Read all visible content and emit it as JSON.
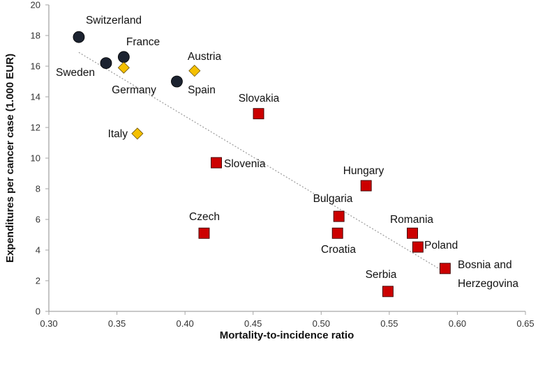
{
  "chart_data": {
    "type": "scatter",
    "title": "",
    "xlabel": "Mortality-to-incidence ratio",
    "ylabel": "Expenditures per cancer case (1.000 EUR)",
    "xlim": [
      0.3,
      0.65
    ],
    "ylim": [
      0,
      20
    ],
    "xticks": [
      "0.30",
      "0.35",
      "0.40",
      "0.45",
      "0.50",
      "0.55",
      "0.60",
      "0.65"
    ],
    "yticks": [
      "0",
      "2",
      "4",
      "6",
      "8",
      "10",
      "12",
      "14",
      "16",
      "18",
      "20"
    ],
    "grid": false,
    "legend": "none",
    "groups": {
      "circle": {
        "color": "#1c2330"
      },
      "diamond": {
        "color": "#f5c000"
      },
      "square": {
        "color": "#cc0000"
      }
    },
    "points": [
      {
        "label": "Switzerland",
        "x": 0.322,
        "y": 17.9,
        "group": "circle"
      },
      {
        "label": "France",
        "x": 0.355,
        "y": 16.6,
        "group": "circle"
      },
      {
        "label": "Sweden",
        "x": 0.342,
        "y": 16.2,
        "group": "circle"
      },
      {
        "label": "Germany",
        "x": 0.355,
        "y": 15.9,
        "group": "diamond"
      },
      {
        "label": "Austria",
        "x": 0.407,
        "y": 15.7,
        "group": "diamond"
      },
      {
        "label": "Spain",
        "x": 0.394,
        "y": 15.0,
        "group": "circle"
      },
      {
        "label": "Slovakia",
        "x": 0.454,
        "y": 12.9,
        "group": "square"
      },
      {
        "label": "Italy",
        "x": 0.365,
        "y": 11.6,
        "group": "diamond"
      },
      {
        "label": "Slovenia",
        "x": 0.423,
        "y": 9.7,
        "group": "square"
      },
      {
        "label": "Czech",
        "x": 0.414,
        "y": 5.1,
        "group": "square"
      },
      {
        "label": "Hungary",
        "x": 0.533,
        "y": 8.2,
        "group": "square"
      },
      {
        "label": "Bulgaria",
        "x": 0.513,
        "y": 6.2,
        "group": "square"
      },
      {
        "label": "Croatia",
        "x": 0.512,
        "y": 5.1,
        "group": "square"
      },
      {
        "label": "Romania",
        "x": 0.567,
        "y": 5.1,
        "group": "square"
      },
      {
        "label": "Poland",
        "x": 0.571,
        "y": 4.2,
        "group": "square"
      },
      {
        "label": "Bosnia and Herzegovina",
        "label_lines": [
          "Bosnia and",
          "Herzegovina"
        ],
        "x": 0.591,
        "y": 2.8,
        "group": "square"
      },
      {
        "label": "Serbia",
        "x": 0.549,
        "y": 1.3,
        "group": "square"
      }
    ],
    "trendline": {
      "style": "dotted",
      "color": "#999999",
      "from": [
        0.322,
        16.9
      ],
      "to": [
        0.59,
        2.6
      ]
    }
  }
}
